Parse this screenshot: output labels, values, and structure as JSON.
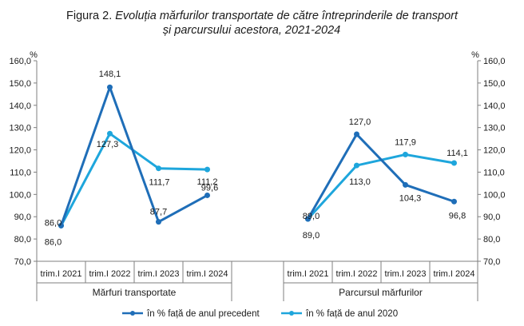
{
  "title": {
    "prefix": "Figura 2.",
    "line1": "Evoluția mărfurilor transportate de către întreprinderile de transport",
    "line2": "și parcursului acestora,  2021-2024"
  },
  "chart_data": {
    "type": "line",
    "unit_left": "%",
    "unit_right": "%",
    "ylim": [
      70,
      160
    ],
    "yticks": [
      "70,0",
      "80,0",
      "90,0",
      "100,0",
      "110,0",
      "120,0",
      "130,0",
      "140,0",
      "150,0",
      "160,0"
    ],
    "grid": false,
    "legend_position": "bottom",
    "colors": {
      "precedent": "#1f6eb8",
      "y2020": "#1ea6dc",
      "axis": "#7f7f7f"
    },
    "groups": [
      {
        "name": "Mărfuri transportate",
        "categories": [
          "trim.I 2021",
          "trim.I 2022",
          "trim.I 2023",
          "trim.I 2024"
        ],
        "series": [
          {
            "name": "în % față de anul precedent",
            "values": [
              86.0,
              148.1,
              87.7,
              99.6
            ],
            "labels": [
              "86,0",
              "148,1",
              "87,7",
              "99,6"
            ]
          },
          {
            "name": "în % față de anul 2020",
            "values": [
              86.0,
              127.3,
              111.7,
              111.2
            ],
            "labels": [
              "86,0",
              "127,3",
              "111,7",
              "111,2"
            ]
          }
        ]
      },
      {
        "name": "Parcursul mărfurilor",
        "categories": [
          "trim.I 2021",
          "trim.I 2022",
          "trim.I 2023",
          "trim.I 2024"
        ],
        "series": [
          {
            "name": "în % față de anul precedent",
            "values": [
              89.0,
              127.0,
              104.3,
              96.8
            ],
            "labels": [
              "89,0",
              "127,0",
              "104,3",
              "96,8"
            ]
          },
          {
            "name": "în % față de anul 2020",
            "values": [
              89.0,
              113.0,
              117.9,
              114.1
            ],
            "labels": [
              "89,0",
              "113,0",
              "117,9",
              "114,1"
            ]
          }
        ]
      }
    ]
  }
}
